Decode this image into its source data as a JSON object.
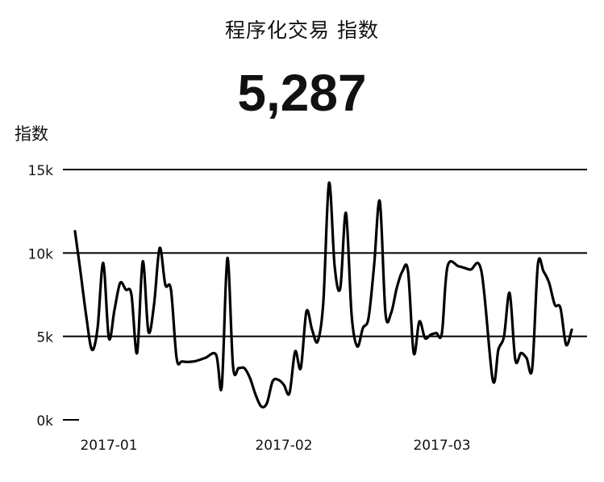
{
  "header": {
    "title": "程序化交易 指数",
    "big_number": "5,287"
  },
  "chart_data": {
    "type": "line",
    "title": "程序化交易 指数",
    "ylabel": "指数",
    "xlabel": "",
    "ylim": [
      0,
      15000
    ],
    "y_ticks": [
      0,
      5000,
      10000,
      15000
    ],
    "y_tick_labels": [
      "0k",
      "5k",
      "10k",
      "15k"
    ],
    "x_ticks": [
      "2017-01-01",
      "2017-02-01",
      "2017-03-01"
    ],
    "x_tick_labels": [
      "2017-01",
      "2017-02",
      "2017-03"
    ],
    "grid": "horizontal",
    "line_color": "#000000",
    "series": [
      {
        "values": [
          {
            "x": "2016-12-26",
            "y": 11300
          },
          {
            "x": "2016-12-27",
            "y": 8800
          },
          {
            "x": "2016-12-28",
            "y": 6200
          },
          {
            "x": "2016-12-29",
            "y": 4200
          },
          {
            "x": "2016-12-30",
            "y": 5500
          },
          {
            "x": "2016-12-31",
            "y": 9400
          },
          {
            "x": "2017-01-01",
            "y": 4900
          },
          {
            "x": "2017-01-02",
            "y": 6600
          },
          {
            "x": "2017-01-03",
            "y": 8200
          },
          {
            "x": "2017-01-04",
            "y": 7800
          },
          {
            "x": "2017-01-05",
            "y": 7500
          },
          {
            "x": "2017-01-06",
            "y": 4000
          },
          {
            "x": "2017-01-07",
            "y": 9500
          },
          {
            "x": "2017-01-08",
            "y": 5300
          },
          {
            "x": "2017-01-09",
            "y": 6900
          },
          {
            "x": "2017-01-10",
            "y": 10300
          },
          {
            "x": "2017-01-11",
            "y": 8100
          },
          {
            "x": "2017-01-12",
            "y": 7800
          },
          {
            "x": "2017-01-13",
            "y": 3700
          },
          {
            "x": "2017-01-14",
            "y": 3500
          },
          {
            "x": "2017-01-16",
            "y": 3500
          },
          {
            "x": "2017-01-18",
            "y": 3700
          },
          {
            "x": "2017-01-20",
            "y": 3900
          },
          {
            "x": "2017-01-21",
            "y": 2000
          },
          {
            "x": "2017-01-22",
            "y": 9700
          },
          {
            "x": "2017-01-23",
            "y": 3200
          },
          {
            "x": "2017-01-24",
            "y": 3100
          },
          {
            "x": "2017-01-25",
            "y": 3100
          },
          {
            "x": "2017-01-26",
            "y": 2500
          },
          {
            "x": "2017-01-27",
            "y": 1500
          },
          {
            "x": "2017-01-28",
            "y": 800
          },
          {
            "x": "2017-01-29",
            "y": 1000
          },
          {
            "x": "2017-01-30",
            "y": 2300
          },
          {
            "x": "2017-01-31",
            "y": 2400
          },
          {
            "x": "2017-02-01",
            "y": 2100
          },
          {
            "x": "2017-02-02",
            "y": 1600
          },
          {
            "x": "2017-02-03",
            "y": 4100
          },
          {
            "x": "2017-02-04",
            "y": 3100
          },
          {
            "x": "2017-02-05",
            "y": 6500
          },
          {
            "x": "2017-02-06",
            "y": 5400
          },
          {
            "x": "2017-02-07",
            "y": 4700
          },
          {
            "x": "2017-02-08",
            "y": 7100
          },
          {
            "x": "2017-02-09",
            "y": 14200
          },
          {
            "x": "2017-02-10",
            "y": 9200
          },
          {
            "x": "2017-02-11",
            "y": 7900
          },
          {
            "x": "2017-02-12",
            "y": 12400
          },
          {
            "x": "2017-02-13",
            "y": 6300
          },
          {
            "x": "2017-02-14",
            "y": 4400
          },
          {
            "x": "2017-02-15",
            "y": 5500
          },
          {
            "x": "2017-02-16",
            "y": 6100
          },
          {
            "x": "2017-02-17",
            "y": 9300
          },
          {
            "x": "2017-02-18",
            "y": 13100
          },
          {
            "x": "2017-02-19",
            "y": 6400
          },
          {
            "x": "2017-02-20",
            "y": 6400
          },
          {
            "x": "2017-02-21",
            "y": 7900
          },
          {
            "x": "2017-02-22",
            "y": 8900
          },
          {
            "x": "2017-02-23",
            "y": 8900
          },
          {
            "x": "2017-02-24",
            "y": 4000
          },
          {
            "x": "2017-02-25",
            "y": 5900
          },
          {
            "x": "2017-02-26",
            "y": 4900
          },
          {
            "x": "2017-02-27",
            "y": 5100
          },
          {
            "x": "2017-02-28",
            "y": 5200
          },
          {
            "x": "2017-03-01",
            "y": 5200
          },
          {
            "x": "2017-03-02",
            "y": 9200
          },
          {
            "x": "2017-03-04",
            "y": 9200
          },
          {
            "x": "2017-03-06",
            "y": 9000
          },
          {
            "x": "2017-03-08",
            "y": 8900
          },
          {
            "x": "2017-03-10",
            "y": 2400
          },
          {
            "x": "2017-03-11",
            "y": 4200
          },
          {
            "x": "2017-03-12",
            "y": 5000
          },
          {
            "x": "2017-03-13",
            "y": 7600
          },
          {
            "x": "2017-03-14",
            "y": 3600
          },
          {
            "x": "2017-03-15",
            "y": 4000
          },
          {
            "x": "2017-03-16",
            "y": 3700
          },
          {
            "x": "2017-03-17",
            "y": 3100
          },
          {
            "x": "2017-03-18",
            "y": 9300
          },
          {
            "x": "2017-03-19",
            "y": 8900
          },
          {
            "x": "2017-03-20",
            "y": 8200
          },
          {
            "x": "2017-03-21",
            "y": 6900
          },
          {
            "x": "2017-03-22",
            "y": 6700
          },
          {
            "x": "2017-03-23",
            "y": 4500
          },
          {
            "x": "2017-03-24",
            "y": 5400
          }
        ]
      }
    ]
  }
}
